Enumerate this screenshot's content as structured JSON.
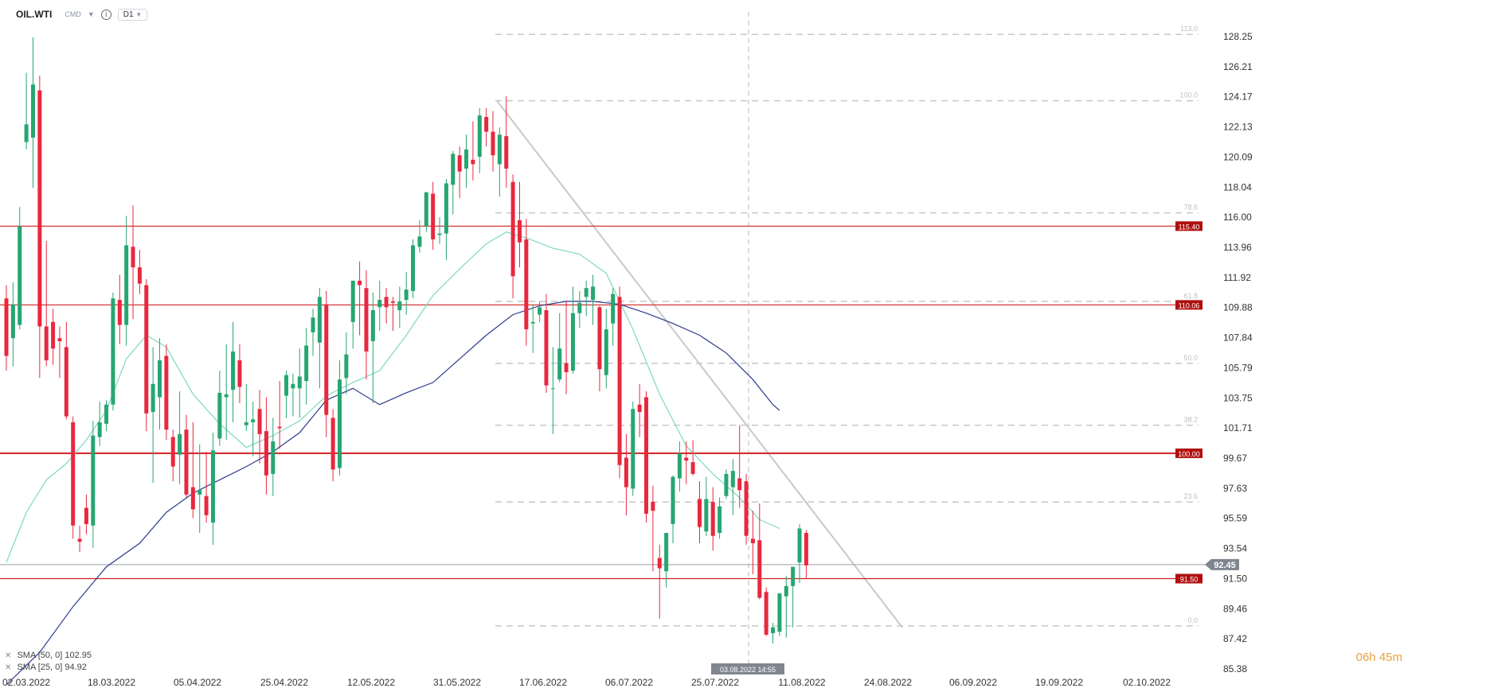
{
  "toolbar": {
    "symbol": "OIL.WTI",
    "instrument_type": "CMD",
    "timeframe": "D1",
    "info_icon": "info-icon",
    "dropdown_icon": "chevron-down-icon"
  },
  "legend": {
    "sma50": "SMA [50, 0] 102.95",
    "sma25": "SMA [25, 0] 94.92",
    "remove_icon": "close-icon"
  },
  "timer": {
    "value": "06h 45m"
  },
  "colors": {
    "up": "#26a671",
    "down": "#e8283f",
    "sma50": "#2b3a8c",
    "sma25": "#7fd8c0",
    "level_line": "#d02020",
    "level_label_bg": "#b01010",
    "price_label_bg": "#7f8690",
    "fib_line": "#c8c8c8",
    "trend_line": "#c8c8c8"
  },
  "chart_data": {
    "type": "candlestick",
    "x_tick_labels": [
      "02.03.2022",
      "18.03.2022",
      "05.04.2022",
      "25.04.2022",
      "12.05.2022",
      "31.05.2022",
      "17.06.2022",
      "06.07.2022",
      "25.07.2022",
      "11.08.2022",
      "24.08.2022",
      "06.09.2022",
      "19.09.2022",
      "02.10.2022"
    ],
    "y_tick_labels": [
      "128.25",
      "126.21",
      "124.17",
      "122.13",
      "120.09",
      "118.04",
      "116.00",
      "113.96",
      "111.92",
      "109.88",
      "107.84",
      "105.79",
      "103.75",
      "101.71",
      "99.67",
      "97.63",
      "95.59",
      "93.54",
      "91.50",
      "89.46",
      "87.42",
      "85.38"
    ],
    "ylim": [
      85.38,
      128.25
    ],
    "horizontal_levels": [
      {
        "value": 115.4,
        "label": "115.40"
      },
      {
        "value": 110.06,
        "label": "110.06"
      },
      {
        "value": 100.0,
        "label": "100.00"
      },
      {
        "value": 91.5,
        "label": "91.50"
      }
    ],
    "current_price": {
      "value": 92.45,
      "label": "92.45"
    },
    "fibonacci_levels": [
      {
        "ratio": "113.0",
        "value": 128.4
      },
      {
        "ratio": "100.0",
        "value": 123.9
      },
      {
        "ratio": "78.6",
        "value": 116.3
      },
      {
        "ratio": "61.8",
        "value": 110.3
      },
      {
        "ratio": "50.0",
        "value": 106.1
      },
      {
        "ratio": "38.2",
        "value": 101.9
      },
      {
        "ratio": "23.6",
        "value": 96.7
      },
      {
        "ratio": "0.0",
        "value": 88.3
      }
    ],
    "crosshair": {
      "label": "03.08.2022 14:55"
    },
    "trend_line": {
      "from": {
        "date_index": 73,
        "value": 123.9
      },
      "to": {
        "date_index": 134,
        "value": 88.2
      }
    },
    "sma50_values": [
      [
        0,
        84.3
      ],
      [
        5,
        86.5
      ],
      [
        10,
        89.6
      ],
      [
        15,
        92.3
      ],
      [
        20,
        93.9
      ],
      [
        24,
        96.0
      ],
      [
        28,
        97.3
      ],
      [
        32,
        98.2
      ],
      [
        36,
        99.1
      ],
      [
        40,
        100.1
      ],
      [
        44,
        101.4
      ],
      [
        48,
        103.6
      ],
      [
        52,
        104.4
      ],
      [
        56,
        103.3
      ],
      [
        60,
        104.1
      ],
      [
        64,
        104.8
      ],
      [
        68,
        106.4
      ],
      [
        72,
        108.0
      ],
      [
        76,
        109.4
      ],
      [
        80,
        110.0
      ],
      [
        84,
        110.3
      ],
      [
        88,
        110.3
      ],
      [
        92,
        110.1
      ],
      [
        96,
        109.5
      ],
      [
        100,
        108.8
      ],
      [
        104,
        108.0
      ],
      [
        108,
        106.8
      ],
      [
        112,
        105.0
      ],
      [
        115,
        103.3
      ],
      [
        116,
        102.9
      ]
    ],
    "sma25_values": [
      [
        0,
        92.6
      ],
      [
        3,
        96.0
      ],
      [
        6,
        98.2
      ],
      [
        9,
        99.3
      ],
      [
        12,
        100.9
      ],
      [
        15,
        102.9
      ],
      [
        18,
        106.4
      ],
      [
        21,
        108.0
      ],
      [
        24,
        107.2
      ],
      [
        28,
        104.0
      ],
      [
        32,
        102.0
      ],
      [
        36,
        100.4
      ],
      [
        40,
        101.2
      ],
      [
        44,
        102.2
      ],
      [
        48,
        103.9
      ],
      [
        52,
        104.8
      ],
      [
        56,
        105.6
      ],
      [
        60,
        108.0
      ],
      [
        64,
        110.7
      ],
      [
        68,
        112.5
      ],
      [
        72,
        114.2
      ],
      [
        75,
        115.0
      ],
      [
        78,
        114.6
      ],
      [
        82,
        113.9
      ],
      [
        86,
        113.5
      ],
      [
        90,
        112.2
      ],
      [
        94,
        108.4
      ],
      [
        98,
        104.0
      ],
      [
        102,
        100.5
      ],
      [
        106,
        98.6
      ],
      [
        110,
        97.0
      ],
      [
        113,
        95.5
      ],
      [
        116,
        94.9
      ]
    ],
    "candles": [
      {
        "o": 110.5,
        "h": 111.4,
        "l": 105.6,
        "c": 106.6
      },
      {
        "o": 107.8,
        "h": 111.6,
        "l": 105.9,
        "c": 110.1
      },
      {
        "o": 108.7,
        "h": 116.7,
        "l": 108.4,
        "c": 115.4
      },
      {
        "o": 121.1,
        "h": 125.8,
        "l": 120.6,
        "c": 122.3
      },
      {
        "o": 121.4,
        "h": 128.2,
        "l": 118.0,
        "c": 125.0
      },
      {
        "o": 124.6,
        "h": 125.6,
        "l": 105.1,
        "c": 108.6
      },
      {
        "o": 108.6,
        "h": 114.4,
        "l": 105.9,
        "c": 106.3
      },
      {
        "o": 108.9,
        "h": 109.8,
        "l": 106.0,
        "c": 107.1
      },
      {
        "o": 107.8,
        "h": 108.6,
        "l": 105.1,
        "c": 107.6
      },
      {
        "o": 107.2,
        "h": 108.9,
        "l": 102.3,
        "c": 102.5
      },
      {
        "o": 102.1,
        "h": 102.5,
        "l": 94.2,
        "c": 95.1
      },
      {
        "o": 94.2,
        "h": 95.1,
        "l": 93.3,
        "c": 94.0
      },
      {
        "o": 96.3,
        "h": 97.2,
        "l": 94.5,
        "c": 95.2
      },
      {
        "o": 95.1,
        "h": 102.2,
        "l": 93.6,
        "c": 101.2
      },
      {
        "o": 101.1,
        "h": 103.5,
        "l": 100.5,
        "c": 102.1
      },
      {
        "o": 102.0,
        "h": 103.6,
        "l": 101.5,
        "c": 103.3
      },
      {
        "o": 103.3,
        "h": 110.9,
        "l": 102.9,
        "c": 110.5
      },
      {
        "o": 110.4,
        "h": 112.1,
        "l": 107.4,
        "c": 108.7
      },
      {
        "o": 108.7,
        "h": 116.1,
        "l": 107.3,
        "c": 114.1
      },
      {
        "o": 114.0,
        "h": 116.8,
        "l": 109.1,
        "c": 112.6
      },
      {
        "o": 112.6,
        "h": 113.8,
        "l": 110.8,
        "c": 111.5
      },
      {
        "o": 111.4,
        "h": 111.8,
        "l": 101.5,
        "c": 102.7
      },
      {
        "o": 102.8,
        "h": 107.2,
        "l": 98.0,
        "c": 104.7
      },
      {
        "o": 103.8,
        "h": 107.8,
        "l": 101.6,
        "c": 106.3
      },
      {
        "o": 106.6,
        "h": 107.4,
        "l": 100.9,
        "c": 101.6
      },
      {
        "o": 101.1,
        "h": 101.6,
        "l": 98.1,
        "c": 99.1
      },
      {
        "o": 99.9,
        "h": 104.2,
        "l": 97.9,
        "c": 101.3
      },
      {
        "o": 101.6,
        "h": 102.6,
        "l": 97.0,
        "c": 97.2
      },
      {
        "o": 97.7,
        "h": 102.1,
        "l": 95.6,
        "c": 96.2
      },
      {
        "o": 97.2,
        "h": 100.6,
        "l": 94.6,
        "c": 97.5
      },
      {
        "o": 97.1,
        "h": 100.1,
        "l": 95.3,
        "c": 95.8
      },
      {
        "o": 95.3,
        "h": 101.4,
        "l": 93.8,
        "c": 100.2
      },
      {
        "o": 101.0,
        "h": 105.6,
        "l": 100.5,
        "c": 104.1
      },
      {
        "o": 103.8,
        "h": 107.4,
        "l": 100.9,
        "c": 104.0
      },
      {
        "o": 104.3,
        "h": 108.9,
        "l": 102.1,
        "c": 106.9
      },
      {
        "o": 106.3,
        "h": 107.4,
        "l": 103.4,
        "c": 104.5
      },
      {
        "o": 101.9,
        "h": 104.7,
        "l": 101.5,
        "c": 102.1
      },
      {
        "o": 102.1,
        "h": 103.5,
        "l": 99.8,
        "c": 102.3
      },
      {
        "o": 103.0,
        "h": 104.3,
        "l": 99.3,
        "c": 101.3
      },
      {
        "o": 101.5,
        "h": 103.8,
        "l": 97.2,
        "c": 98.5
      },
      {
        "o": 98.6,
        "h": 102.4,
        "l": 97.1,
        "c": 100.8
      },
      {
        "o": 101.8,
        "h": 104.9,
        "l": 100.3,
        "c": 101.7
      },
      {
        "o": 103.9,
        "h": 105.6,
        "l": 102.4,
        "c": 105.3
      },
      {
        "o": 104.4,
        "h": 105.4,
        "l": 102.5,
        "c": 104.7
      },
      {
        "o": 104.4,
        "h": 107.1,
        "l": 102.4,
        "c": 105.2
      },
      {
        "o": 104.9,
        "h": 108.5,
        "l": 103.3,
        "c": 107.3
      },
      {
        "o": 108.2,
        "h": 109.8,
        "l": 106.6,
        "c": 109.2
      },
      {
        "o": 107.5,
        "h": 111.2,
        "l": 104.4,
        "c": 110.6
      },
      {
        "o": 110.1,
        "h": 111.0,
        "l": 101.1,
        "c": 102.6
      },
      {
        "o": 102.4,
        "h": 103.0,
        "l": 98.1,
        "c": 98.9
      },
      {
        "o": 99.0,
        "h": 106.3,
        "l": 98.5,
        "c": 105.0
      },
      {
        "o": 105.1,
        "h": 108.2,
        "l": 104.0,
        "c": 106.7
      },
      {
        "o": 108.9,
        "h": 111.7,
        "l": 107.1,
        "c": 111.7
      },
      {
        "o": 111.7,
        "h": 113.0,
        "l": 108.0,
        "c": 111.4
      },
      {
        "o": 111.2,
        "h": 112.4,
        "l": 105.0,
        "c": 106.9
      },
      {
        "o": 107.6,
        "h": 110.9,
        "l": 103.4,
        "c": 109.7
      },
      {
        "o": 109.9,
        "h": 111.7,
        "l": 108.3,
        "c": 110.4
      },
      {
        "o": 110.6,
        "h": 111.2,
        "l": 108.8,
        "c": 109.9
      },
      {
        "o": 110.3,
        "h": 110.6,
        "l": 108.3,
        "c": 110.2
      },
      {
        "o": 109.7,
        "h": 111.3,
        "l": 108.5,
        "c": 110.3
      },
      {
        "o": 110.4,
        "h": 112.3,
        "l": 109.4,
        "c": 111.1
      },
      {
        "o": 111.0,
        "h": 114.5,
        "l": 110.5,
        "c": 114.1
      },
      {
        "o": 114.0,
        "h": 115.8,
        "l": 113.6,
        "c": 114.7
      },
      {
        "o": 115.4,
        "h": 117.7,
        "l": 115.0,
        "c": 117.7
      },
      {
        "o": 117.6,
        "h": 118.4,
        "l": 113.8,
        "c": 114.5
      },
      {
        "o": 114.8,
        "h": 116.0,
        "l": 114.2,
        "c": 114.9
      },
      {
        "o": 114.9,
        "h": 118.6,
        "l": 113.1,
        "c": 118.3
      },
      {
        "o": 118.2,
        "h": 120.5,
        "l": 116.2,
        "c": 120.3
      },
      {
        "o": 120.2,
        "h": 120.8,
        "l": 117.3,
        "c": 119.1
      },
      {
        "o": 119.3,
        "h": 121.6,
        "l": 118.0,
        "c": 120.6
      },
      {
        "o": 119.9,
        "h": 122.5,
        "l": 118.5,
        "c": 119.6
      },
      {
        "o": 120.1,
        "h": 123.4,
        "l": 119.0,
        "c": 122.9
      },
      {
        "o": 122.8,
        "h": 123.4,
        "l": 120.8,
        "c": 121.8
      },
      {
        "o": 121.8,
        "h": 123.2,
        "l": 119.1,
        "c": 120.2
      },
      {
        "o": 119.6,
        "h": 122.1,
        "l": 117.4,
        "c": 121.6
      },
      {
        "o": 121.5,
        "h": 124.2,
        "l": 118.0,
        "c": 119.3
      },
      {
        "o": 118.4,
        "h": 118.9,
        "l": 110.5,
        "c": 112.0
      },
      {
        "o": 115.8,
        "h": 118.4,
        "l": 112.6,
        "c": 114.3
      },
      {
        "o": 114.5,
        "h": 115.9,
        "l": 107.3,
        "c": 108.4
      },
      {
        "o": 108.8,
        "h": 110.1,
        "l": 106.8,
        "c": 108.9
      },
      {
        "o": 109.4,
        "h": 110.3,
        "l": 108.9,
        "c": 109.9
      },
      {
        "o": 109.7,
        "h": 110.8,
        "l": 104.1,
        "c": 104.6
      },
      {
        "o": 104.4,
        "h": 107.2,
        "l": 101.3,
        "c": 104.4
      },
      {
        "o": 105.0,
        "h": 109.5,
        "l": 104.8,
        "c": 107.1
      },
      {
        "o": 106.1,
        "h": 110.3,
        "l": 104.0,
        "c": 105.5
      },
      {
        "o": 105.6,
        "h": 111.3,
        "l": 105.4,
        "c": 109.5
      },
      {
        "o": 109.5,
        "h": 111.0,
        "l": 108.5,
        "c": 110.2
      },
      {
        "o": 110.6,
        "h": 111.7,
        "l": 109.3,
        "c": 111.2
      },
      {
        "o": 110.4,
        "h": 112.1,
        "l": 108.7,
        "c": 111.3
      },
      {
        "o": 109.9,
        "h": 110.0,
        "l": 104.2,
        "c": 105.7
      },
      {
        "o": 105.3,
        "h": 109.8,
        "l": 104.4,
        "c": 108.4
      },
      {
        "o": 108.8,
        "h": 111.2,
        "l": 107.3,
        "c": 110.8
      },
      {
        "o": 110.6,
        "h": 111.3,
        "l": 98.3,
        "c": 99.2
      },
      {
        "o": 99.7,
        "h": 101.3,
        "l": 95.8,
        "c": 97.7
      },
      {
        "o": 97.6,
        "h": 103.5,
        "l": 97.1,
        "c": 103.0
      },
      {
        "o": 103.3,
        "h": 104.7,
        "l": 101.1,
        "c": 102.8
      },
      {
        "o": 103.8,
        "h": 104.2,
        "l": 95.3,
        "c": 95.9
      },
      {
        "o": 96.7,
        "h": 97.8,
        "l": 92.0,
        "c": 96.1
      },
      {
        "o": 92.9,
        "h": 93.8,
        "l": 88.8,
        "c": 92.2
      },
      {
        "o": 92.0,
        "h": 94.6,
        "l": 90.9,
        "c": 94.6
      },
      {
        "o": 95.2,
        "h": 98.5,
        "l": 93.9,
        "c": 98.4
      },
      {
        "o": 98.3,
        "h": 100.8,
        "l": 97.4,
        "c": 100.0
      },
      {
        "o": 99.7,
        "h": 100.8,
        "l": 97.9,
        "c": 99.5
      },
      {
        "o": 99.4,
        "h": 100.9,
        "l": 98.5,
        "c": 98.6
      },
      {
        "o": 96.9,
        "h": 98.1,
        "l": 93.9,
        "c": 95.0
      },
      {
        "o": 94.7,
        "h": 98.4,
        "l": 94.4,
        "c": 96.9
      },
      {
        "o": 96.7,
        "h": 97.7,
        "l": 93.4,
        "c": 94.4
      },
      {
        "o": 94.6,
        "h": 97.0,
        "l": 94.2,
        "c": 96.4
      },
      {
        "o": 97.1,
        "h": 98.9,
        "l": 96.9,
        "c": 98.6
      },
      {
        "o": 97.7,
        "h": 99.6,
        "l": 95.8,
        "c": 98.8
      },
      {
        "o": 98.3,
        "h": 101.9,
        "l": 96.3,
        "c": 97.5
      },
      {
        "o": 98.1,
        "h": 98.6,
        "l": 93.8,
        "c": 94.4
      },
      {
        "o": 94.2,
        "h": 96.1,
        "l": 91.8,
        "c": 93.9
      },
      {
        "o": 94.1,
        "h": 96.6,
        "l": 90.1,
        "c": 90.2
      },
      {
        "o": 90.6,
        "h": 90.9,
        "l": 87.6,
        "c": 87.7
      },
      {
        "o": 87.8,
        "h": 88.5,
        "l": 87.1,
        "c": 88.2
      },
      {
        "o": 87.9,
        "h": 90.4,
        "l": 87.6,
        "c": 90.5
      },
      {
        "o": 90.3,
        "h": 91.7,
        "l": 87.5,
        "c": 91.0
      },
      {
        "o": 91.0,
        "h": 92.2,
        "l": 88.2,
        "c": 92.3
      },
      {
        "o": 92.6,
        "h": 95.2,
        "l": 91.2,
        "c": 94.9
      },
      {
        "o": 94.6,
        "h": 94.8,
        "l": 91.5,
        "c": 92.4
      }
    ]
  }
}
